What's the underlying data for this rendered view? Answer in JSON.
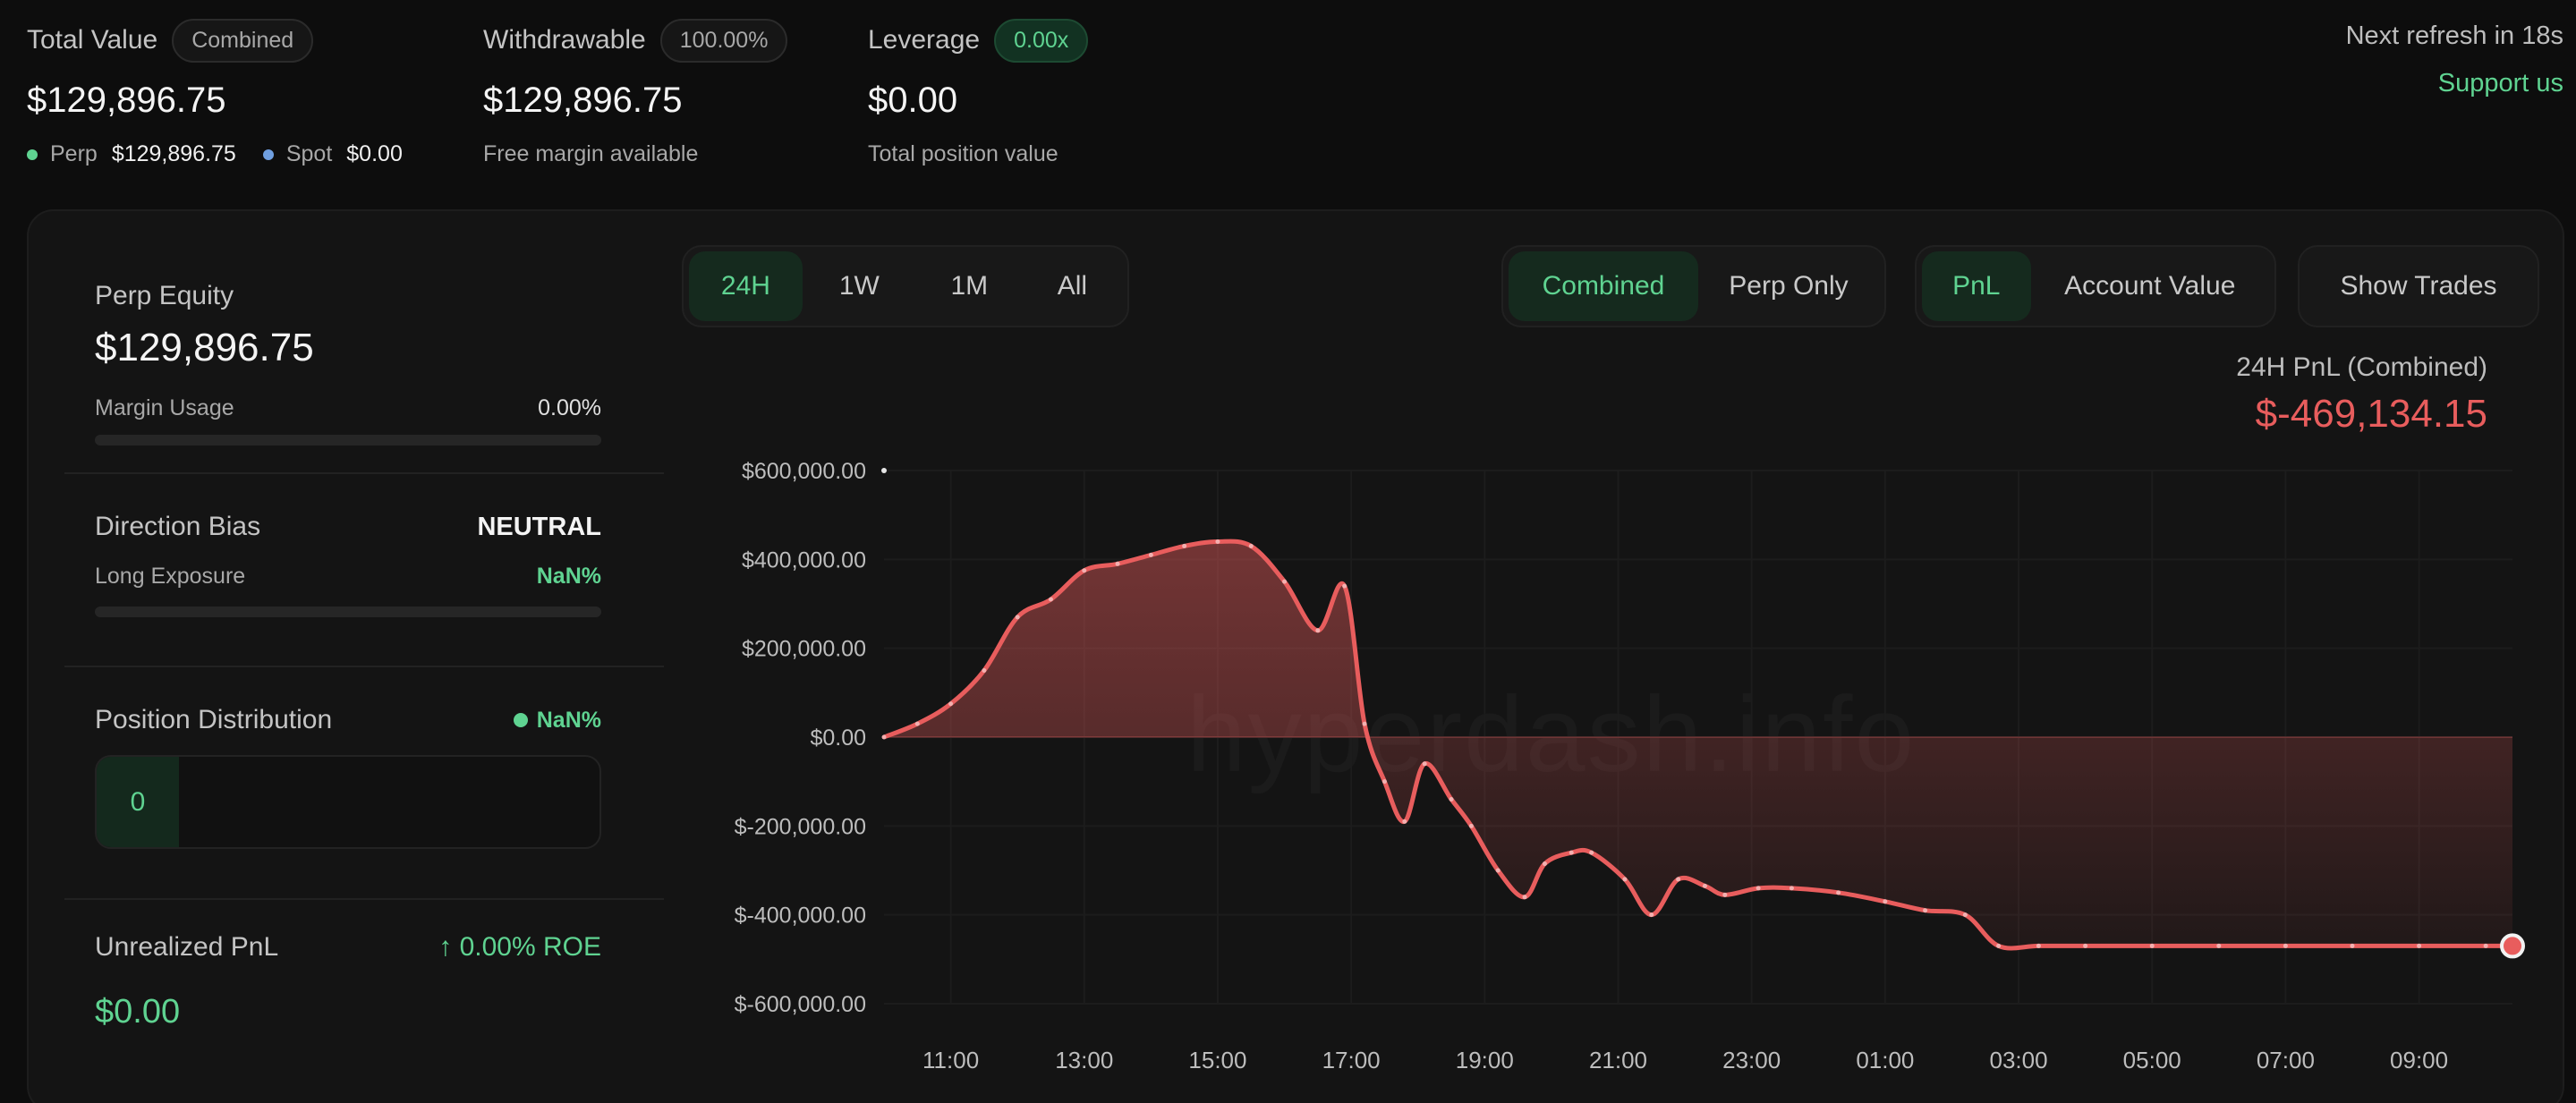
{
  "summary": {
    "total_value": {
      "label": "Total Value",
      "pill": "Combined",
      "value": "$129,896.75",
      "perp_label": "Perp",
      "perp_value": "$129,896.75",
      "spot_label": "Spot",
      "spot_value": "$0.00"
    },
    "withdrawable": {
      "label": "Withdrawable",
      "pill": "100.00%",
      "value": "$129,896.75",
      "sub": "Free margin available"
    },
    "leverage": {
      "label": "Leverage",
      "pill": "0.00x",
      "value": "$0.00",
      "sub": "Total position value"
    },
    "refresh": "Next refresh in 18s",
    "support": "Support us"
  },
  "left": {
    "perp_equity": {
      "label": "Perp Equity",
      "value": "$129,896.75",
      "margin_label": "Margin Usage",
      "margin_value": "0.00%",
      "margin_fraction": 0
    },
    "direction": {
      "label": "Direction Bias",
      "value": "NEUTRAL",
      "long_label": "Long Exposure",
      "long_value": "NaN%"
    },
    "distribution": {
      "label": "Position Distribution",
      "value": "NaN%",
      "count": "0"
    },
    "unrealized": {
      "label": "Unrealized PnL",
      "roe": "↑ 0.00% ROE",
      "value": "$0.00"
    }
  },
  "controls": {
    "range": [
      {
        "label": "24H",
        "active": true
      },
      {
        "label": "1W",
        "active": false
      },
      {
        "label": "1M",
        "active": false
      },
      {
        "label": "All",
        "active": false
      }
    ],
    "scope": [
      {
        "label": "Combined",
        "active": true
      },
      {
        "label": "Perp Only",
        "active": false
      }
    ],
    "metric": [
      {
        "label": "PnL",
        "active": true
      },
      {
        "label": "Account Value",
        "active": false
      }
    ],
    "show_trades": "Show Trades"
  },
  "chart_header": {
    "label": "24H PnL (Combined)",
    "value": "$-469,134.15"
  },
  "watermark": "hyperdash.info",
  "colors": {
    "accent_green": "#5fd391",
    "loss_red": "#e85d5d",
    "background": "#0d0d0d",
    "panel": "#141414"
  },
  "chart_data": {
    "type": "area",
    "ylim": [
      -600000,
      600000
    ],
    "yticks": [
      600000,
      400000,
      200000,
      0,
      -200000,
      -400000,
      -600000
    ],
    "ytick_labels": [
      "$600,000.00",
      "$400,000.00",
      "$200,000.00",
      "$0.00",
      "$-200,000.00",
      "$-400,000.00",
      "$-600,000.00"
    ],
    "xlim": [
      10.0,
      34.4
    ],
    "xticks": [
      11,
      13,
      15,
      17,
      19,
      21,
      23,
      25,
      27,
      29,
      31,
      33
    ],
    "xtick_labels": [
      "11:00",
      "13:00",
      "15:00",
      "17:00",
      "19:00",
      "21:00",
      "23:00",
      "01:00",
      "03:00",
      "05:00",
      "07:00",
      "09:00"
    ],
    "series": [
      {
        "x": [
          10.0,
          10.5,
          11.0,
          11.5,
          12.0,
          12.5,
          13.0,
          13.5,
          14.0,
          14.5,
          15.0,
          15.5,
          16.0,
          16.5,
          16.9,
          17.2,
          17.5,
          17.8,
          18.1,
          18.5,
          18.8,
          19.2,
          19.6,
          19.9,
          20.3,
          20.6,
          21.1,
          21.5,
          21.9,
          22.3,
          22.6,
          23.1,
          23.6,
          24.3,
          25.0,
          25.6,
          26.2,
          26.7,
          27.3,
          28.0,
          29.0,
          30.0,
          31.0,
          32.0,
          33.0,
          34.0,
          34.4
        ],
        "y": [
          0,
          30000,
          75000,
          150000,
          270000,
          310000,
          375000,
          390000,
          410000,
          430000,
          440000,
          430000,
          350000,
          240000,
          340000,
          30000,
          -100000,
          -190000,
          -60000,
          -140000,
          -200000,
          -300000,
          -360000,
          -285000,
          -260000,
          -260000,
          -320000,
          -400000,
          -320000,
          -335000,
          -355000,
          -340000,
          -340000,
          -350000,
          -370000,
          -390000,
          -400000,
          -470000,
          -470000,
          -470000,
          -470000,
          -470000,
          -470000,
          -470000,
          -470000,
          -470000,
          -470000
        ]
      }
    ],
    "grid": true
  }
}
